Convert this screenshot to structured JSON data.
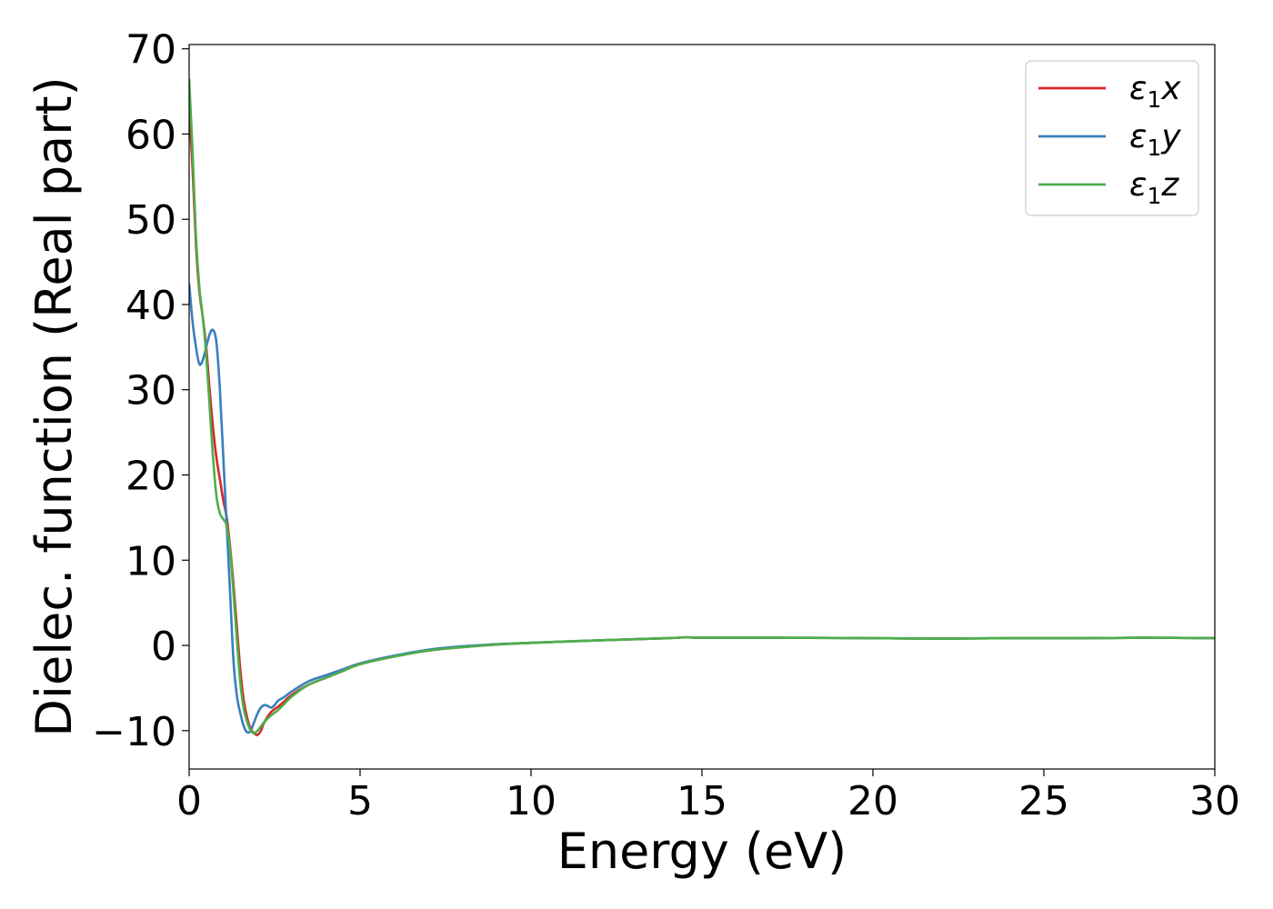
{
  "chart_data": {
    "type": "line",
    "xlabel": "Energy (eV)",
    "ylabel": "Dielec. function (Real part)",
    "xlim": [
      0,
      30
    ],
    "ylim": [
      -14.5,
      70.5
    ],
    "x_ticks": [
      0,
      5,
      10,
      15,
      20,
      25,
      30
    ],
    "y_ticks": [
      -10,
      0,
      10,
      20,
      30,
      40,
      50,
      60,
      70
    ],
    "x_tick_labels": [
      "0",
      "5",
      "10",
      "15",
      "20",
      "25",
      "30"
    ],
    "y_tick_labels": [
      "−10",
      "0",
      "10",
      "20",
      "30",
      "40",
      "50",
      "60",
      "70"
    ],
    "grid": false,
    "legend_position": "top-right",
    "series": [
      {
        "name": "ε₁x",
        "legend_base": "ε",
        "legend_sub": "1",
        "legend_var": "x",
        "color": "#d62728",
        "x": [
          0,
          0.1,
          0.2,
          0.3,
          0.4,
          0.5,
          0.6,
          0.7,
          0.8,
          0.9,
          1.0,
          1.1,
          1.2,
          1.3,
          1.4,
          1.5,
          1.6,
          1.7,
          1.8,
          1.9,
          2.0,
          2.1,
          2.2,
          2.4,
          2.6,
          2.8,
          3.0,
          3.5,
          4.0,
          4.5,
          5.0,
          6.0,
          7.0,
          8.0,
          9.0,
          10.0,
          12.0,
          14.0,
          14.5,
          15.0,
          17.0,
          19.0,
          20.0,
          22.0,
          24.0,
          26.0,
          28.0,
          30.0
        ],
        "y": [
          63.0,
          56.0,
          47.0,
          41.5,
          38.5,
          35.0,
          30.0,
          25.5,
          22.0,
          19.5,
          17.0,
          15.0,
          11.5,
          7.0,
          2.0,
          -3.0,
          -6.5,
          -8.5,
          -9.8,
          -10.3,
          -10.5,
          -10.0,
          -9.0,
          -7.8,
          -7.2,
          -6.5,
          -5.8,
          -4.6,
          -3.8,
          -3.0,
          -2.2,
          -1.3,
          -0.6,
          -0.2,
          0.1,
          0.3,
          0.6,
          0.85,
          0.95,
          0.9,
          0.9,
          0.88,
          0.85,
          0.8,
          0.85,
          0.85,
          0.9,
          0.85
        ]
      },
      {
        "name": "ε₁y",
        "legend_base": "ε",
        "legend_sub": "1",
        "legend_var": "y",
        "color": "#3a7ebf",
        "x": [
          0,
          0.1,
          0.2,
          0.3,
          0.4,
          0.5,
          0.6,
          0.7,
          0.8,
          0.9,
          1.0,
          1.1,
          1.2,
          1.3,
          1.4,
          1.5,
          1.6,
          1.7,
          1.8,
          1.9,
          2.0,
          2.1,
          2.2,
          2.3,
          2.4,
          2.5,
          2.6,
          2.8,
          3.0,
          3.5,
          4.0,
          4.5,
          5.0,
          6.0,
          7.0,
          8.0,
          9.0,
          10.0,
          12.0,
          14.0,
          14.5,
          15.0,
          17.0,
          19.0,
          20.0,
          22.0,
          24.0,
          26.0,
          28.0,
          30.0
        ],
        "y": [
          42.5,
          38.0,
          35.0,
          33.0,
          33.5,
          35.0,
          36.5,
          37.0,
          35.5,
          30.0,
          22.0,
          14.0,
          6.0,
          -2.0,
          -6.0,
          -8.0,
          -9.5,
          -10.2,
          -10.0,
          -9.0,
          -8.0,
          -7.3,
          -7.0,
          -7.1,
          -7.3,
          -7.0,
          -6.5,
          -6.0,
          -5.4,
          -4.2,
          -3.5,
          -2.8,
          -2.1,
          -1.2,
          -0.5,
          -0.1,
          0.15,
          0.3,
          0.6,
          0.85,
          0.95,
          0.9,
          0.9,
          0.88,
          0.85,
          0.8,
          0.85,
          0.85,
          0.9,
          0.85
        ]
      },
      {
        "name": "ε₁z",
        "legend_base": "ε",
        "legend_sub": "1",
        "legend_var": "z",
        "color": "#4daf4a",
        "x": [
          0,
          0.1,
          0.2,
          0.3,
          0.4,
          0.5,
          0.6,
          0.7,
          0.8,
          0.9,
          1.0,
          1.1,
          1.2,
          1.3,
          1.4,
          1.5,
          1.6,
          1.7,
          1.8,
          1.9,
          2.0,
          2.1,
          2.2,
          2.4,
          2.6,
          2.8,
          3.0,
          3.5,
          4.0,
          4.5,
          5.0,
          6.0,
          7.0,
          8.0,
          9.0,
          10.0,
          12.0,
          14.0,
          14.5,
          15.0,
          17.0,
          19.0,
          20.0,
          22.0,
          24.0,
          26.0,
          28.0,
          30.0
        ],
        "y": [
          66.5,
          58.0,
          48.0,
          42.0,
          38.5,
          34.0,
          28.0,
          22.0,
          17.5,
          15.5,
          14.8,
          14.0,
          11.0,
          6.0,
          0.5,
          -4.5,
          -7.5,
          -9.0,
          -10.0,
          -10.3,
          -10.0,
          -9.5,
          -9.0,
          -8.2,
          -7.6,
          -6.8,
          -6.0,
          -4.6,
          -3.8,
          -3.0,
          -2.2,
          -1.3,
          -0.6,
          -0.2,
          0.1,
          0.3,
          0.6,
          0.85,
          0.95,
          0.9,
          0.9,
          0.88,
          0.85,
          0.8,
          0.85,
          0.85,
          0.9,
          0.85
        ]
      }
    ]
  }
}
